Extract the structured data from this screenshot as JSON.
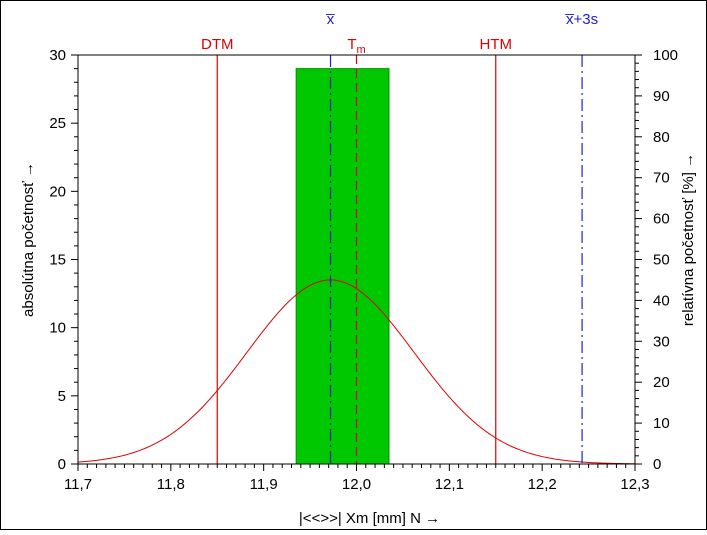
{
  "chart_data": {
    "type": "bar",
    "title": "",
    "xlabel": "|<<>>|  Xm [mm]  N →",
    "ylabel_left": "absolútna početnosť →",
    "ylabel_right": "relatívna početnosť  [%] →",
    "xlim": [
      11.7,
      12.3
    ],
    "ylim_left": [
      0,
      30
    ],
    "ylim_right": [
      0,
      100
    ],
    "x_ticks": [
      "11,7",
      "11,8",
      "11,9",
      "12,0",
      "12,1",
      "12,2",
      "12,3"
    ],
    "x_tick_values": [
      11.7,
      11.8,
      11.9,
      12.0,
      12.1,
      12.2,
      12.3
    ],
    "y_left_ticks": [
      "0",
      "5",
      "10",
      "15",
      "20",
      "25",
      "30"
    ],
    "y_left_tick_values": [
      0,
      5,
      10,
      15,
      20,
      25,
      30
    ],
    "y_right_ticks": [
      "0",
      "10",
      "20",
      "30",
      "40",
      "50",
      "60",
      "70",
      "80",
      "90",
      "100"
    ],
    "y_right_tick_values": [
      0,
      10,
      20,
      30,
      40,
      50,
      60,
      70,
      80,
      90,
      100
    ],
    "bars": [
      {
        "x_start": 11.935,
        "x_end": 12.035,
        "count": 29
      }
    ],
    "normal_curve": {
      "mean": 11.972,
      "sd": 0.09,
      "peak": 13.5
    },
    "reference_lines": [
      {
        "label": "DTM",
        "x": 11.85,
        "style": "solid",
        "color": "#e00000"
      },
      {
        "label": "HTM",
        "x": 12.15,
        "style": "solid",
        "color": "#e00000"
      },
      {
        "label": "T",
        "sub": "m",
        "x": 12.0,
        "style": "dashed",
        "color": "#e00000"
      },
      {
        "label": "x̅",
        "x": 11.972,
        "style": "dashdot",
        "color": "#2020d0"
      },
      {
        "label": "x̅+3s",
        "x": 12.243,
        "style": "dashdot",
        "color": "#2020d0"
      }
    ],
    "colors": {
      "bar": "#00c800",
      "curve": "#e00000",
      "frame": "#000000"
    }
  }
}
